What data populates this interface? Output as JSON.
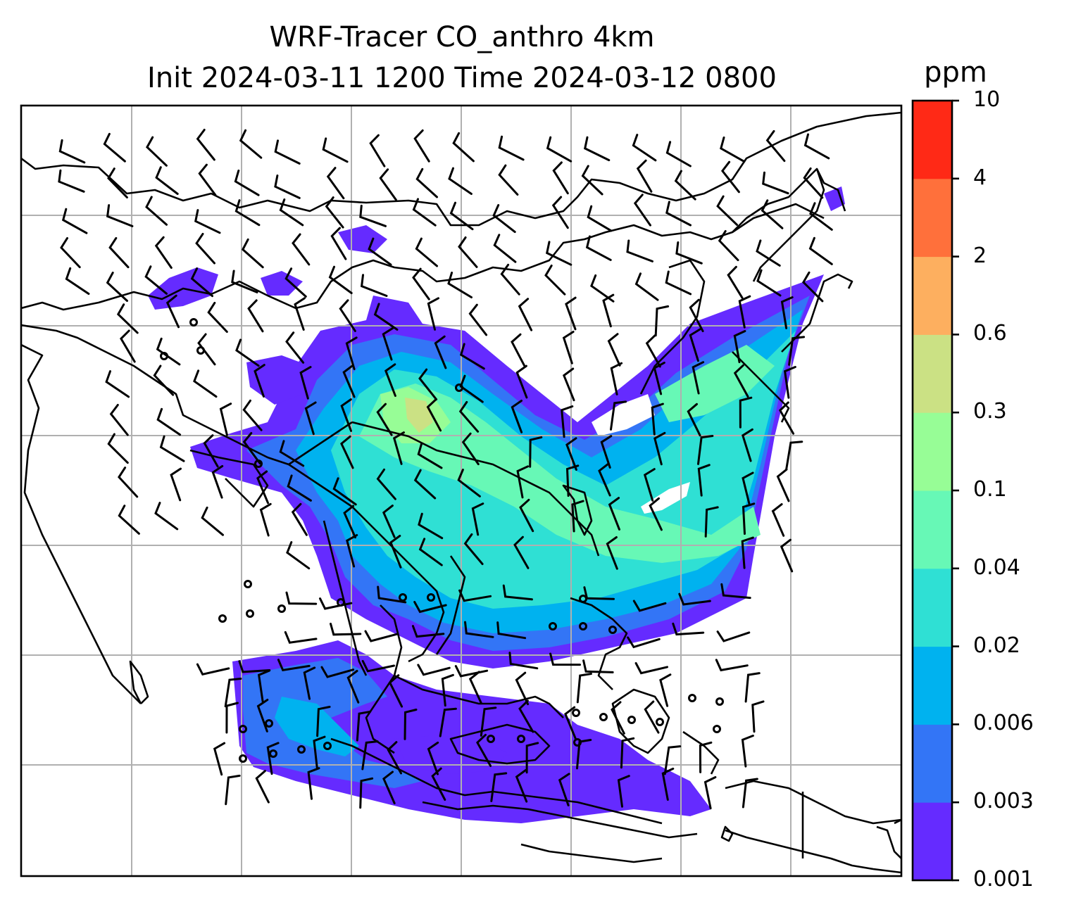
{
  "title": {
    "line1": "WRF-Tracer CO_anthro 4km",
    "line2": "Init 2024-03-11 1200 Time 2024-03-12 0800"
  },
  "colorbar": {
    "unit": "ppm",
    "levels": [
      "0.001",
      "0.003",
      "0.006",
      "0.02",
      "0.04",
      "0.1",
      "0.3",
      "0.6",
      "2",
      "4",
      "10"
    ],
    "colors": [
      "#652bff",
      "#3375f6",
      "#00b2ef",
      "#2fe0d4",
      "#67f8b6",
      "#97fd96",
      "#cbe184",
      "#fdaf5f",
      "#ff703b",
      "#ff2916"
    ]
  },
  "map": {
    "gridlines": true,
    "coastline_color": "#000000",
    "grid_color": "#b0b0b0",
    "calm_symbol": "circle",
    "wind_symbol": "barb"
  }
}
